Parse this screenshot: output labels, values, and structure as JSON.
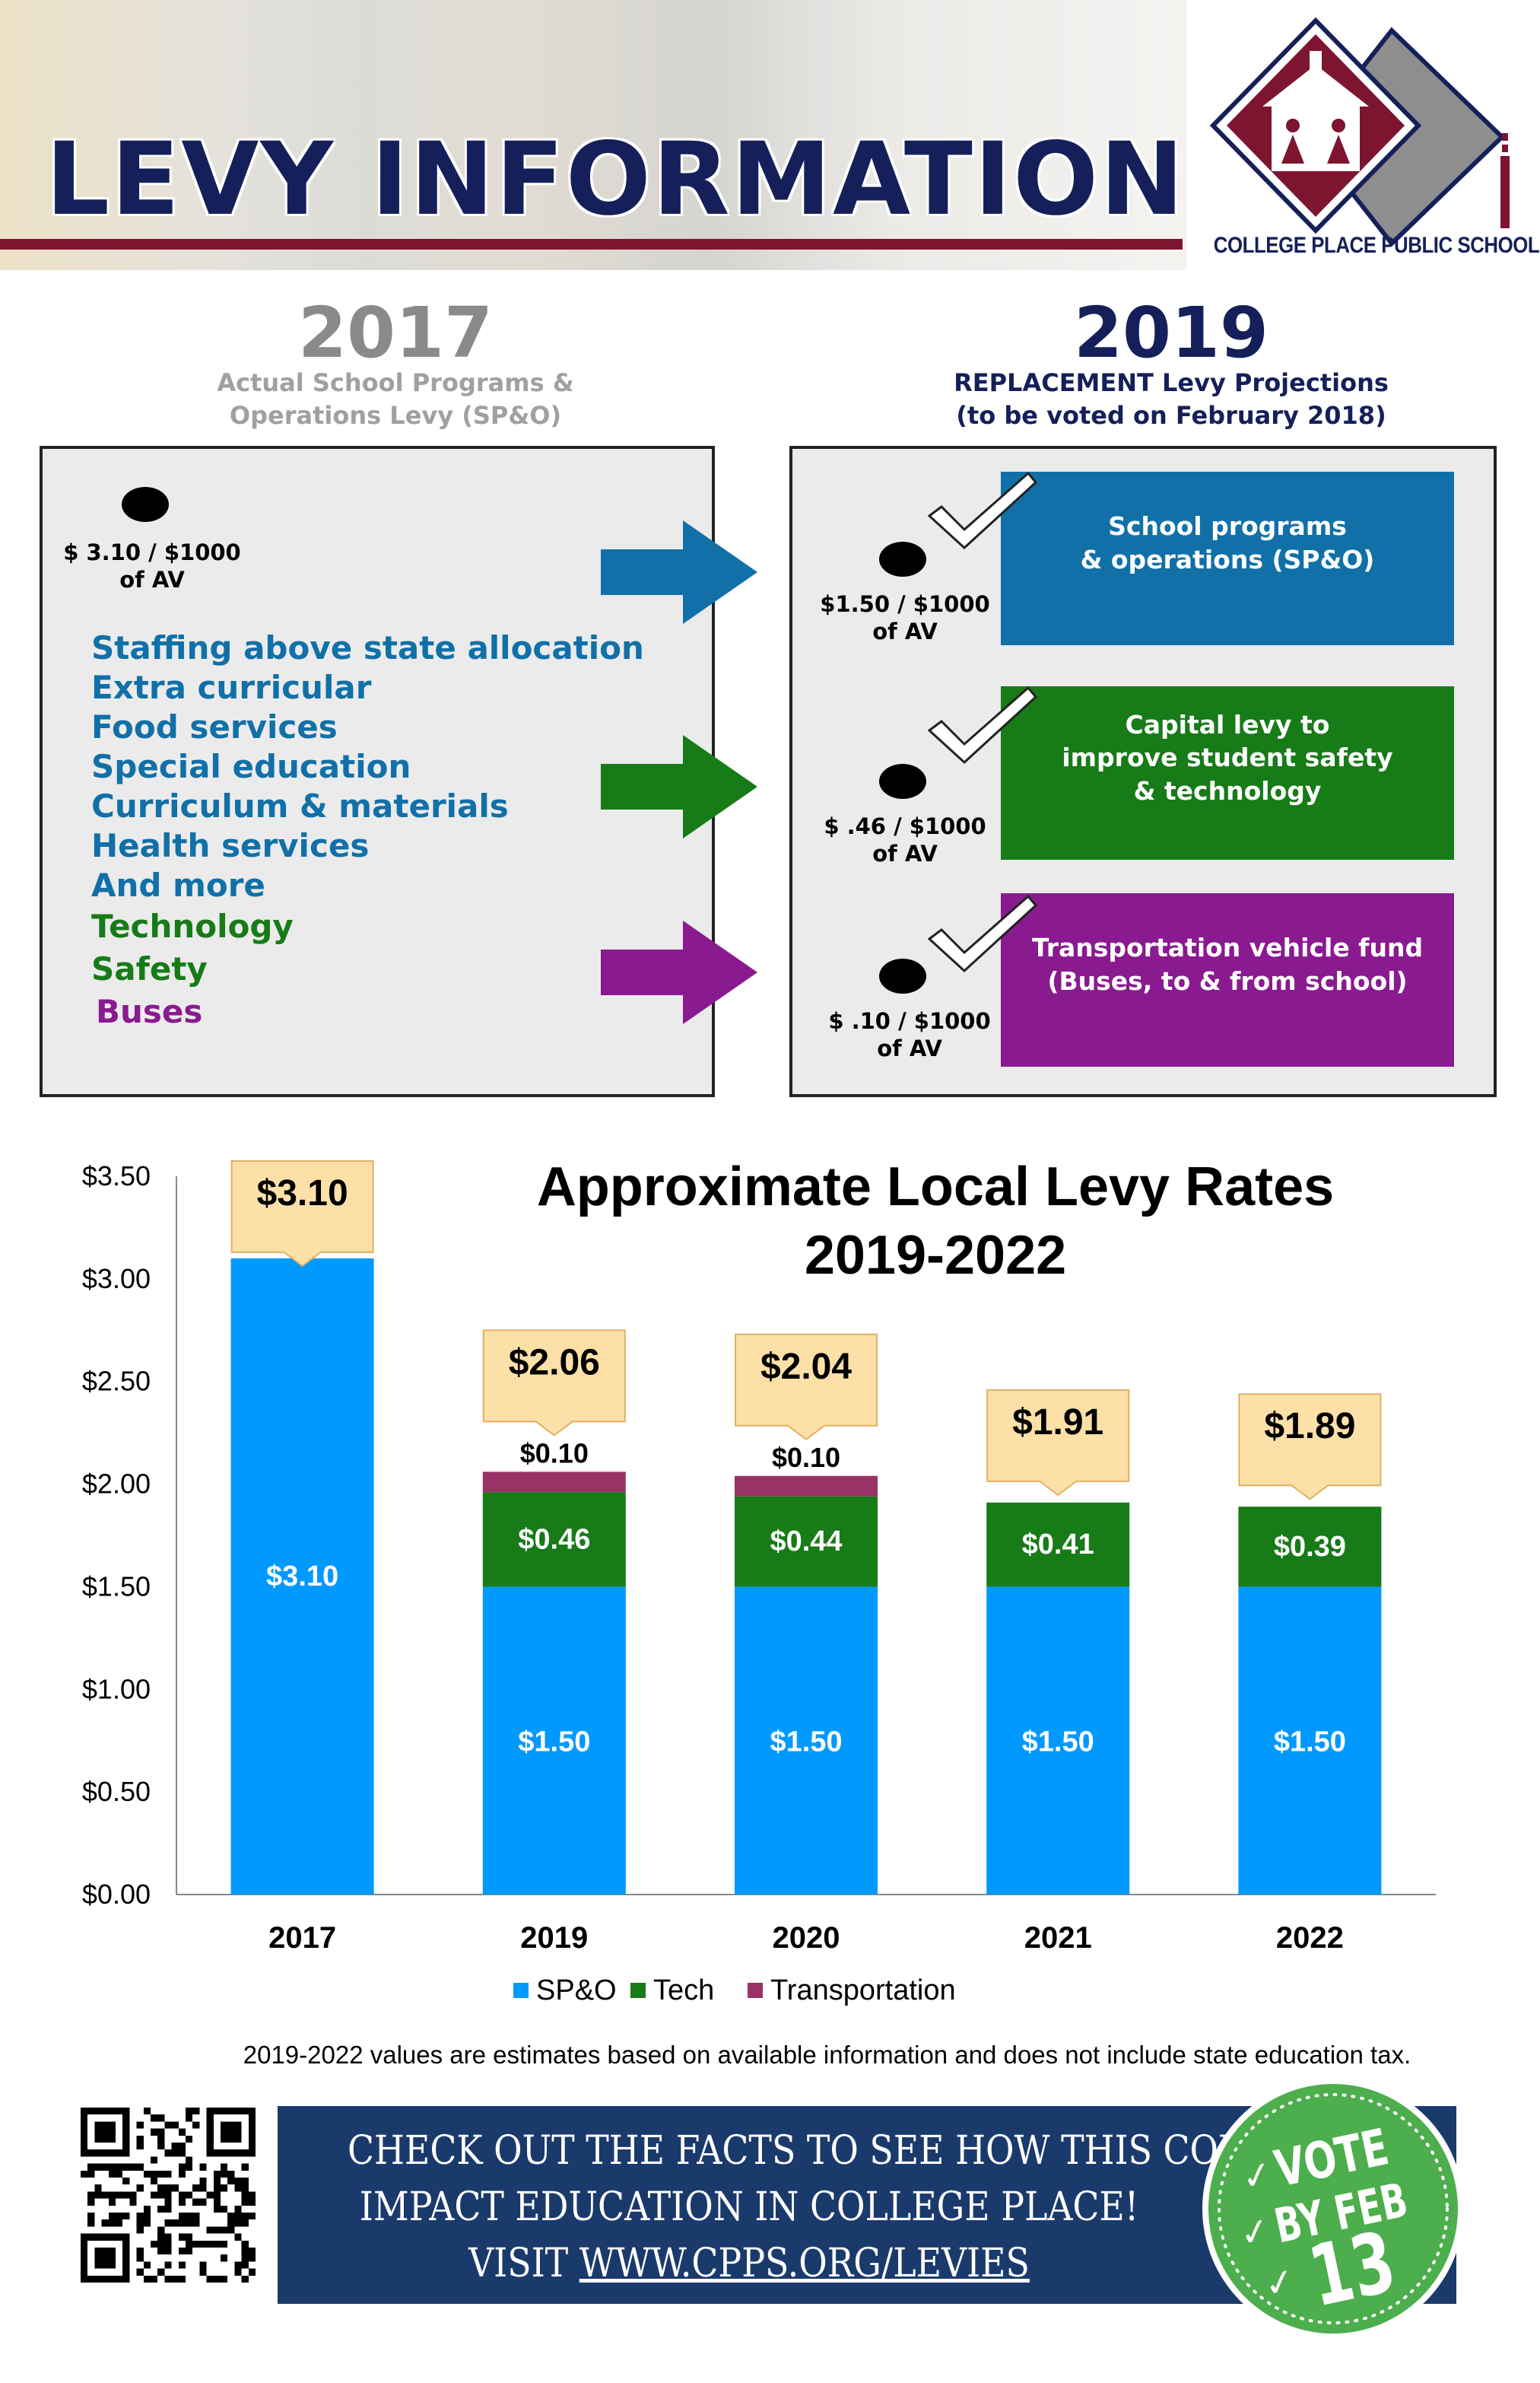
{
  "header": {
    "title": "LEVY INFORMATION",
    "logo_caption": "COLLEGE PLACE PUBLIC SCHOOLS"
  },
  "left": {
    "year": "2017",
    "subtitle_line1": "Actual School Programs &",
    "subtitle_line2": "Operations Levy (SP&O)",
    "rate_line1": "$ 3.10 / $1000",
    "rate_line2": "of AV",
    "items": [
      {
        "label": "Staffing above state allocation",
        "color": "#1170a8"
      },
      {
        "label": "Extra curricular",
        "color": "#1170a8"
      },
      {
        "label": "Food services",
        "color": "#1170a8"
      },
      {
        "label": "Special education",
        "color": "#1170a8"
      },
      {
        "label": "Curriculum & materials",
        "color": "#1170a8"
      },
      {
        "label": "Health services",
        "color": "#1170a8"
      },
      {
        "label": "And more",
        "color": "#1170a8"
      },
      {
        "label": "Technology",
        "color": "#177b18"
      },
      {
        "label": "Safety",
        "color": "#177b18"
      },
      {
        "label": "Buses",
        "color": "#8a1a90"
      }
    ]
  },
  "right": {
    "year": "2019",
    "subtitle_line1": "REPLACEMENT Levy Projections",
    "subtitle_line2": "(to be voted on February 2018)",
    "levies": [
      {
        "rate_line1": "$1.50 / $1000",
        "rate_line2": "of AV",
        "box": "School programs\n& operations (SP&O)",
        "color": "#1170a8"
      },
      {
        "rate_line1": "$ .46 / $1000",
        "rate_line2": "of AV",
        "box": "Capital levy to\nimprove student safety\n& technology",
        "color": "#177b18"
      },
      {
        "rate_line1": "$ .10 / $1000",
        "rate_line2": "of AV",
        "box": "Transportation vehicle fund\n(Buses, to & from school)",
        "color": "#8a1a90"
      }
    ]
  },
  "chart_data": {
    "type": "bar",
    "stacked": true,
    "title": "Approximate Local Levy Rates\n2019-2022",
    "xlabel": "",
    "ylabel": "",
    "ylim": [
      0,
      3.5
    ],
    "yticks": [
      "$0.00",
      "$0.50",
      "$1.00",
      "$1.50",
      "$2.00",
      "$2.50",
      "$3.00",
      "$3.50"
    ],
    "ytick_values": [
      0,
      0.5,
      1.0,
      1.5,
      2.0,
      2.5,
      3.0,
      3.5
    ],
    "categories": [
      "2017",
      "2019",
      "2020",
      "2021",
      "2022"
    ],
    "series": [
      {
        "name": "SP&O",
        "color": "#0099ff",
        "values": [
          3.1,
          1.5,
          1.5,
          1.5,
          1.5
        ],
        "labels": [
          "$3.10",
          "$1.50",
          "$1.50",
          "$1.50",
          "$1.50"
        ]
      },
      {
        "name": "Tech",
        "color": "#177b18",
        "values": [
          0,
          0.46,
          0.44,
          0.41,
          0.39
        ],
        "labels": [
          "",
          "$0.46",
          "$0.44",
          "$0.41",
          "$0.39"
        ]
      },
      {
        "name": "Transportation",
        "color": "#993366",
        "values": [
          0,
          0.1,
          0.1,
          0,
          0
        ],
        "labels": [
          "",
          "$0.10",
          "$0.10",
          "",
          ""
        ]
      }
    ],
    "totals": [
      "$3.10",
      "$2.06",
      "$2.04",
      "$1.91",
      "$1.89"
    ],
    "legend_position": "bottom",
    "grid": false,
    "note": "2019-2022 values are estimates based on available information and does not include state education tax."
  },
  "footer": {
    "banner_line1": "CHECK OUT THE FACTS TO SEE HOW THIS COULD",
    "banner_line2": "IMPACT EDUCATION IN COLLEGE PLACE!",
    "banner_line3_prefix": "VISIT ",
    "banner_link": "WWW.CPPS.ORG/LEVIES",
    "badge_line1": "VOTE",
    "badge_line2": "BY FEB",
    "badge_line3": "13",
    "badge_color": "#4cae4c"
  },
  "colors": {
    "navy": "#15205a",
    "maroon": "#7d1530",
    "banner": "#1b3a6c"
  }
}
